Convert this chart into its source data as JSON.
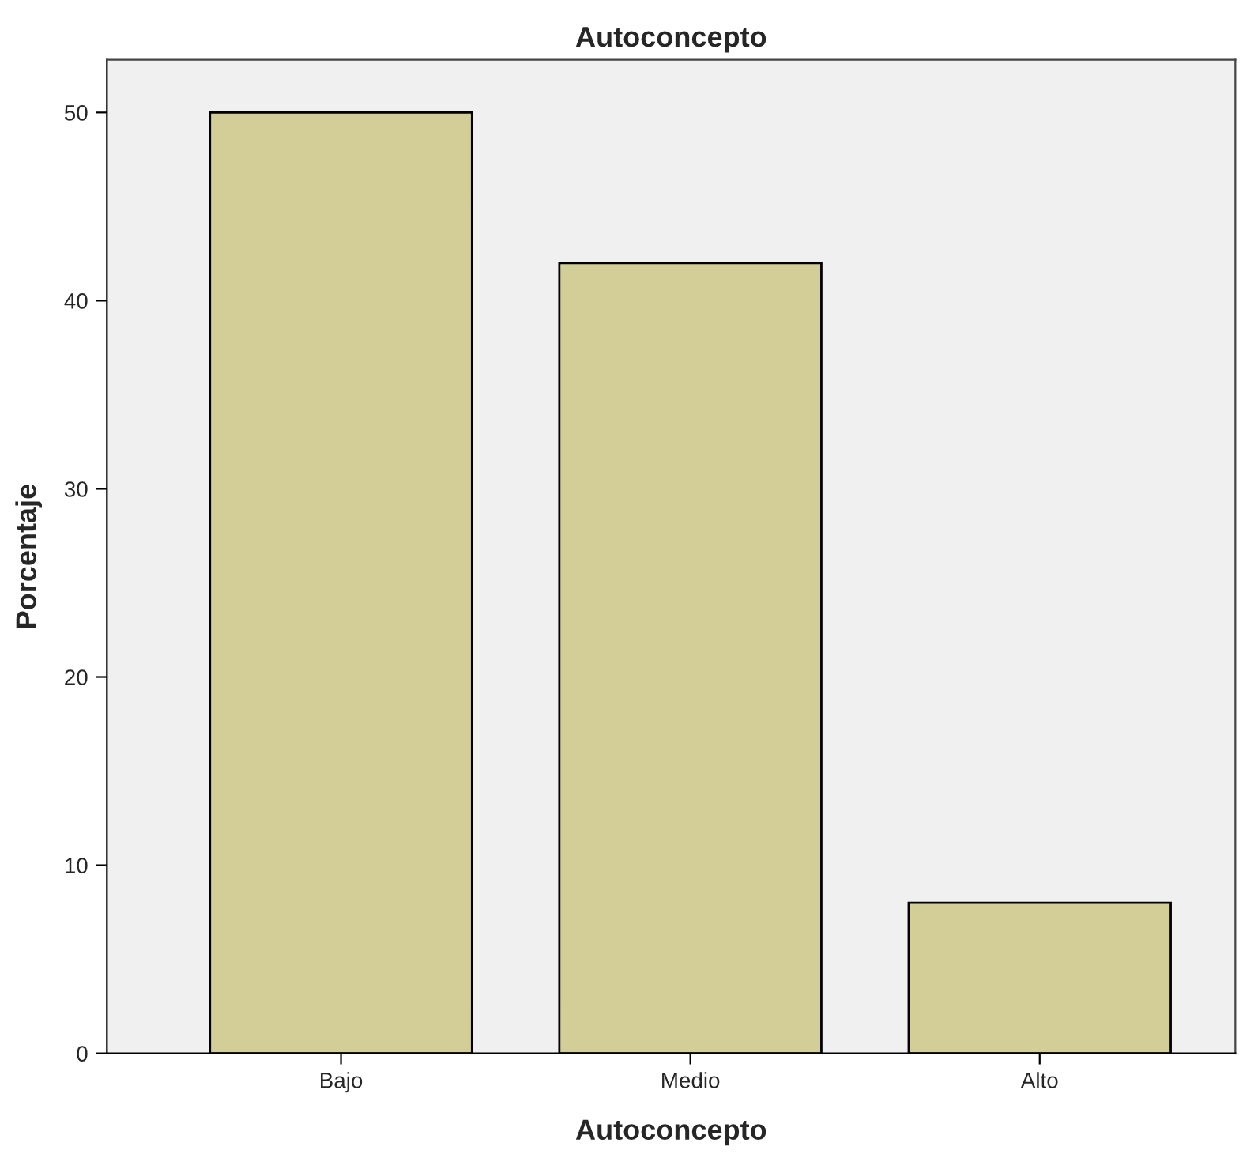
{
  "chart_data": {
    "type": "bar",
    "title": "Autoconcepto",
    "xlabel": "Autoconcepto",
    "ylabel": "Porcentaje",
    "categories": [
      "Bajo",
      "Medio",
      "Alto"
    ],
    "values": [
      50,
      42,
      8
    ],
    "color": "#d3ce97",
    "ylim": [
      0,
      52.8
    ],
    "yticks": [
      0,
      10,
      20,
      30,
      40,
      50
    ],
    "grid": false,
    "legend": false
  }
}
